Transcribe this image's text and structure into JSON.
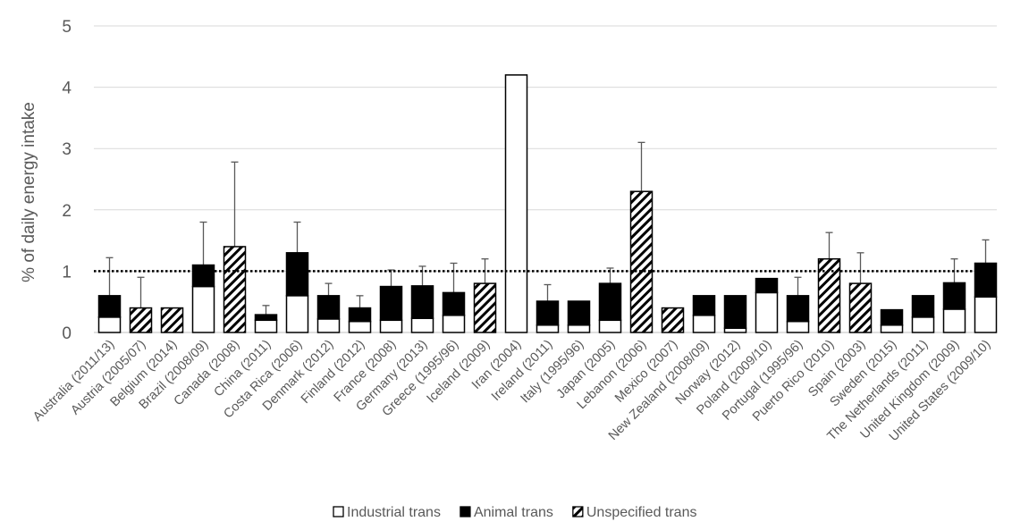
{
  "chart_data": {
    "type": "bar",
    "stacked": true,
    "title": "",
    "xlabel": "",
    "ylabel": "% of daily energy intake",
    "ylim": [
      0,
      5
    ],
    "yticks": [
      "0",
      "1",
      "2",
      "3",
      "4",
      "5"
    ],
    "grid": "horizontal",
    "legend_position": "bottom",
    "reference_line": {
      "value": 1,
      "style": "dotted"
    },
    "categories": [
      "Australia (2011/13)",
      "Austria (2005/07)",
      "Belgium (2014)",
      "Brazil (2008/09)",
      "Canada (2008)",
      "China (2011)",
      "Costa Rica (2006)",
      "Denmark (2012)",
      "Finland (2012)",
      "France (2008)",
      "Germany (2013)",
      "Greece (1995/96)",
      "Iceland (2009)",
      "Iran (2004)",
      "Ireland (2011)",
      "Italy (1995/96)",
      "Japan (2005)",
      "Lebanon (2006)",
      "Mexico (2007)",
      "New Zealand (2008/09)",
      "Norway (2012)",
      "Poland (2009/10)",
      "Portugal (1995/96)",
      "Puerto Rico (2010)",
      "Spain (2003)",
      "Sweden (2015)",
      "The Netherlands (2011)",
      "United Kingdom (2009)",
      "United States (2009/10)"
    ],
    "series": [
      {
        "name": "Industrial trans",
        "pattern": "white",
        "values": [
          0.25,
          0,
          0,
          0.75,
          0,
          0.2,
          0.6,
          0.22,
          0.18,
          0.2,
          0.23,
          0.28,
          0,
          4.2,
          0.12,
          0.12,
          0.2,
          0,
          0,
          0.28,
          0.07,
          0.65,
          0.18,
          0,
          0,
          0.12,
          0.25,
          0.38,
          0.58
        ]
      },
      {
        "name": "Animal trans",
        "pattern": "black",
        "values": [
          0.35,
          0,
          0,
          0.35,
          0,
          0.09,
          0.7,
          0.38,
          0.22,
          0.55,
          0.53,
          0.37,
          0,
          0,
          0.39,
          0.39,
          0.6,
          0,
          0,
          0.32,
          0.53,
          0.23,
          0.42,
          0,
          0,
          0.25,
          0.35,
          0.43,
          0.55
        ]
      },
      {
        "name": "Unspecified trans",
        "pattern": "hatched",
        "values": [
          0,
          0.4,
          0.4,
          0,
          1.4,
          0,
          0,
          0,
          0,
          0,
          0,
          0,
          0.8,
          0,
          0,
          0,
          0,
          2.3,
          0.4,
          0,
          0,
          0,
          0,
          1.2,
          0.8,
          0,
          0,
          0,
          0
        ]
      }
    ],
    "error_upper": [
      1.22,
      0.9,
      null,
      1.8,
      2.78,
      0.44,
      1.8,
      0.8,
      0.6,
      1.02,
      1.08,
      1.13,
      1.2,
      null,
      0.78,
      null,
      1.05,
      3.1,
      null,
      null,
      null,
      null,
      0.9,
      1.63,
      1.3,
      null,
      null,
      1.2,
      1.51
    ]
  }
}
